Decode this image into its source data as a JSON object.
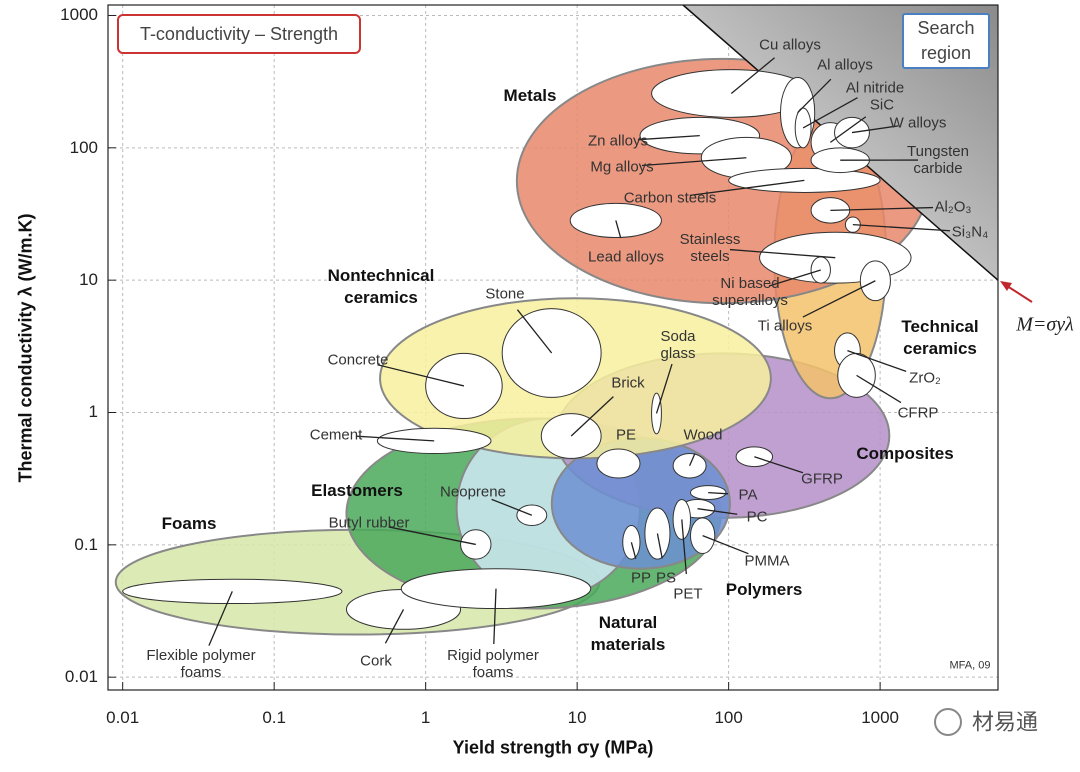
{
  "chart_data": {
    "type": "ashby",
    "title": "T-conductivity – Strength",
    "search_region": "Search region",
    "xlabel": "Yield strength σy (MPa)",
    "ylabel": "Thermal conductivity λ (W/m.K)",
    "credit": "MFA, 09",
    "log_x": true,
    "log_y": true,
    "grid": true,
    "xlim": [
      0.008,
      6000
    ],
    "ylim": [
      0.008,
      1200
    ],
    "xticks": [
      0.01,
      0.1,
      1,
      10,
      100,
      1000
    ],
    "yticks": [
      0.01,
      0.1,
      1,
      10,
      100,
      1000
    ],
    "guideline": {
      "label": "M=σyλ",
      "value": 60000
    },
    "families": [
      {
        "name": "Foams",
        "color": "#d6e7a8",
        "x": [
          0.009,
          14
        ],
        "y": [
          0.021,
          0.13
        ]
      },
      {
        "name": "Natural materials",
        "color": "#4aa85a",
        "x": [
          0.3,
          89
        ],
        "y": [
          0.033,
          0.9
        ]
      },
      {
        "name": "Elastomers",
        "color": "#cfe9f6",
        "x": [
          1.6,
          26
        ],
        "y": [
          0.04,
          0.9
        ]
      },
      {
        "name": "Composites",
        "color": "#b58fc8",
        "x": [
          7.2,
          1150
        ],
        "y": [
          0.16,
          2.8
        ]
      },
      {
        "name": "Polymers",
        "color": "#6c8fd2",
        "x": [
          6.8,
          102
        ],
        "y": [
          0.066,
          0.64
        ]
      },
      {
        "name": "Nontechnical ceramics",
        "color": "#f7f09e",
        "x": [
          0.5,
          190
        ],
        "y": [
          0.45,
          7.3
        ]
      },
      {
        "name": "Technical ceramics",
        "color": "#f3c26b",
        "x": [
          200,
          1100
        ],
        "y": [
          1.28,
          165
        ]
      },
      {
        "name": "Metals",
        "color": "#e8876b",
        "x": [
          4,
          2100
        ],
        "y": [
          6.7,
          470
        ]
      }
    ],
    "materials": [
      {
        "name": "Cu alloys",
        "x": [
          31,
          350
        ],
        "y": [
          170,
          390
        ]
      },
      {
        "name": "Al alloys",
        "x": [
          220,
          370
        ],
        "y": [
          100,
          340
        ]
      },
      {
        "name": "Zn alloys",
        "x": [
          26,
          160
        ],
        "y": [
          90,
          170
        ]
      },
      {
        "name": "Mg alloys",
        "x": [
          66,
          260
        ],
        "y": [
          59,
          120
        ]
      },
      {
        "name": "Carbon steels",
        "x": [
          100,
          1000
        ],
        "y": [
          46,
          70
        ]
      },
      {
        "name": "Lead alloys",
        "x": [
          9,
          36
        ],
        "y": [
          21,
          38
        ]
      },
      {
        "name": "Stainless steels",
        "x": [
          160,
          1600
        ],
        "y": [
          9.5,
          23
        ]
      },
      {
        "name": "Ni based superalloys",
        "x": [
          350,
          470
        ],
        "y": [
          9.5,
          15
        ]
      },
      {
        "name": "Ti alloys",
        "x": [
          740,
          1170
        ],
        "y": [
          7,
          14
        ]
      },
      {
        "name": "Al nitride",
        "x": [
          275,
          350
        ],
        "y": [
          100,
          200
        ]
      },
      {
        "name": "SiC",
        "x": [
          350,
          630
        ],
        "y": [
          78,
          155
        ]
      },
      {
        "name": "W alloys",
        "x": [
          500,
          850
        ],
        "y": [
          100,
          170
        ]
      },
      {
        "name": "Tungsten carbide",
        "x": [
          350,
          850
        ],
        "y": [
          65,
          100
        ]
      },
      {
        "name": "Al₂O₃",
        "x": [
          350,
          630
        ],
        "y": [
          27,
          42
        ]
      },
      {
        "name": "Si₃N₄",
        "x": [
          590,
          740
        ],
        "y": [
          23,
          30
        ]
      },
      {
        "name": "ZrO₂",
        "x": [
          500,
          740
        ],
        "y": [
          2.15,
          4
        ]
      },
      {
        "name": "CFRP",
        "x": [
          525,
          930
        ],
        "y": [
          1.3,
          2.8
        ]
      },
      {
        "name": "GFRP",
        "x": [
          112,
          195
        ],
        "y": [
          0.39,
          0.55
        ]
      },
      {
        "name": "Stone",
        "x": [
          3.2,
          14.4
        ],
        "y": [
          1.3,
          6.1
        ]
      },
      {
        "name": "Soda glass",
        "x": [
          31,
          36
        ],
        "y": [
          0.69,
          1.4
        ]
      },
      {
        "name": "Concrete",
        "x": [
          1.0,
          3.2
        ],
        "y": [
          0.9,
          2.8
        ]
      },
      {
        "name": "Brick",
        "x": [
          5.8,
          14.4
        ],
        "y": [
          0.45,
          0.98
        ]
      },
      {
        "name": "Cement",
        "x": [
          0.48,
          2.7
        ],
        "y": [
          0.49,
          0.76
        ]
      },
      {
        "name": "PE",
        "x": [
          13.5,
          26
        ],
        "y": [
          0.32,
          0.53
        ]
      },
      {
        "name": "Wood",
        "x": [
          43,
          71
        ],
        "y": [
          0.32,
          0.49
        ]
      },
      {
        "name": "PA",
        "x": [
          56,
          96
        ],
        "y": [
          0.22,
          0.28
        ]
      },
      {
        "name": "PC",
        "x": [
          48,
          81
        ],
        "y": [
          0.16,
          0.22
        ]
      },
      {
        "name": "PMMA",
        "x": [
          56,
          81
        ],
        "y": [
          0.086,
          0.16
        ]
      },
      {
        "name": "PP",
        "x": [
          20,
          26
        ],
        "y": [
          0.078,
          0.14
        ]
      },
      {
        "name": "PS",
        "x": [
          28,
          41
        ],
        "y": [
          0.078,
          0.19
        ]
      },
      {
        "name": "PET",
        "x": [
          43,
          56
        ],
        "y": [
          0.11,
          0.22
        ]
      },
      {
        "name": "Neoprene",
        "x": [
          4,
          6.3
        ],
        "y": [
          0.14,
          0.2
        ]
      },
      {
        "name": "Butyl rubber",
        "x": [
          1.7,
          2.7
        ],
        "y": [
          0.078,
          0.13
        ]
      },
      {
        "name": "Flexible polymer foams",
        "x": [
          0.01,
          0.28
        ],
        "y": [
          0.036,
          0.055
        ]
      },
      {
        "name": "Cork",
        "x": [
          0.3,
          1.7
        ],
        "y": [
          0.023,
          0.046
        ]
      },
      {
        "name": "Rigid polymer foams",
        "x": [
          0.69,
          12.3
        ],
        "y": [
          0.033,
          0.066
        ]
      }
    ]
  },
  "watermark": "材易通"
}
